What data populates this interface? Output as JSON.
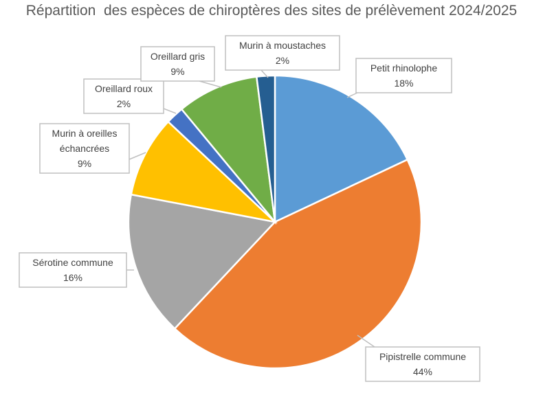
{
  "chart_data": {
    "type": "pie",
    "title": "Répartition  des espèces de chiroptères des sites de prélèvement 2024/2025",
    "legend": "none (data callouts)",
    "slices": [
      {
        "label": "Petit rhinolophe",
        "value": 18,
        "display": "18%",
        "color": "#5B9BD5"
      },
      {
        "label": "Pipistrelle commune",
        "value": 44,
        "display": "44%",
        "color": "#ED7D31"
      },
      {
        "label": "Sérotine commune",
        "value": 16,
        "display": "16%",
        "color": "#A5A5A5"
      },
      {
        "label": "Murin à oreilles échancrées",
        "value": 9,
        "display": "9%",
        "color": "#FFC000"
      },
      {
        "label": "Oreillard roux",
        "value": 2,
        "display": "2%",
        "color": "#4472C4"
      },
      {
        "label": "Oreillard gris",
        "value": 9,
        "display": "9%",
        "color": "#70AD47"
      },
      {
        "label": "Murin à moustaches",
        "value": 2,
        "display": "2%",
        "color": "#255E91"
      }
    ]
  }
}
